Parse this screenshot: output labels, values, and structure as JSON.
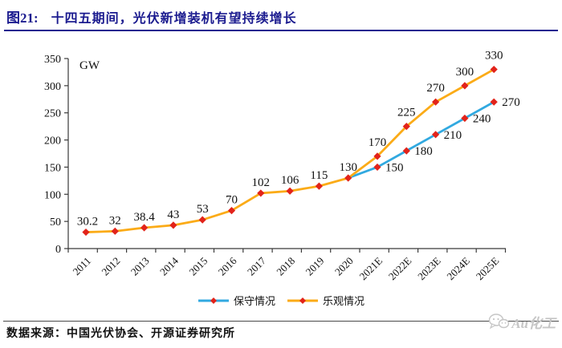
{
  "header": {
    "figure_label": "图21:",
    "title": "十四五期间，光伏新增装机有望持续增长"
  },
  "footer": {
    "source": "数据来源：中国光伏协会、开源证券研究所"
  },
  "watermark": {
    "brand": "Au化工",
    "icon": "wechat-chat-bubbles"
  },
  "colors": {
    "title_navy": "#1b1b8f",
    "conservative_blue": "#31a9e0",
    "optimistic_orange": "#fbab17",
    "marker_red": "#e2231a",
    "axis": "#3a3a3a",
    "label_text": "#111111"
  },
  "chart_data": {
    "type": "line",
    "unit_label": "GW",
    "categories": [
      "2011",
      "2012",
      "2013",
      "2014",
      "2015",
      "2016",
      "2017",
      "2018",
      "2019",
      "2020",
      "2021E",
      "2022E",
      "2023E",
      "2024E",
      "2025E"
    ],
    "series": [
      {
        "name": "保守情况",
        "color": "#31a9e0",
        "values": [
          null,
          null,
          null,
          null,
          null,
          null,
          null,
          null,
          null,
          130,
          150,
          180,
          210,
          240,
          270
        ],
        "data_labels": [
          null,
          null,
          null,
          null,
          null,
          null,
          null,
          null,
          null,
          null,
          "150",
          "180",
          "210",
          "240",
          "270"
        ]
      },
      {
        "name": "乐观情况",
        "color": "#fbab17",
        "values": [
          30.2,
          32,
          38.4,
          43,
          53,
          70,
          102,
          106,
          115,
          130,
          170,
          225,
          270,
          300,
          330
        ],
        "data_labels": [
          "30.2",
          "32",
          "38.4",
          "43",
          "53",
          "70",
          "102",
          "106",
          "115",
          "130",
          "170",
          "225",
          "270",
          "300",
          "330"
        ]
      }
    ],
    "marker": {
      "shape": "diamond",
      "color": "#e2231a"
    },
    "ylim": [
      0,
      350
    ],
    "ytick_step": 50,
    "grid": false,
    "legend_position": "bottom"
  }
}
